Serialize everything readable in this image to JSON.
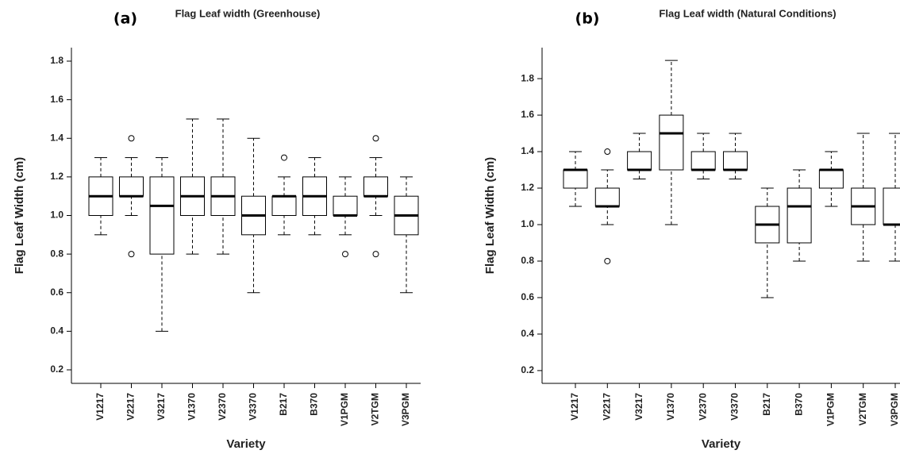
{
  "chart_data": [
    {
      "type": "box",
      "panel_label": "(a)",
      "title": "Flag Leaf width (Greenhouse)",
      "xlabel": "Variety",
      "ylabel": "Flag Leaf Width (cm)",
      "categories": [
        "V1217",
        "V2217",
        "V3217",
        "V1370",
        "V2370",
        "V3370",
        "B217",
        "B370",
        "V1PGM",
        "V2TGM",
        "V3PGM"
      ],
      "boxes": [
        {
          "whislo": 0.9,
          "q1": 1.0,
          "med": 1.1,
          "q3": 1.2,
          "whishi": 1.3,
          "fliers": []
        },
        {
          "whislo": 1.0,
          "q1": 1.1,
          "med": 1.1,
          "q3": 1.2,
          "whishi": 1.3,
          "fliers": [
            1.4,
            0.8
          ]
        },
        {
          "whislo": 0.4,
          "q1": 0.8,
          "med": 1.05,
          "q3": 1.2,
          "whishi": 1.3,
          "fliers": []
        },
        {
          "whislo": 0.8,
          "q1": 1.0,
          "med": 1.1,
          "q3": 1.2,
          "whishi": 1.5,
          "fliers": []
        },
        {
          "whislo": 0.8,
          "q1": 1.0,
          "med": 1.1,
          "q3": 1.2,
          "whishi": 1.5,
          "fliers": []
        },
        {
          "whislo": 0.6,
          "q1": 0.9,
          "med": 1.0,
          "q3": 1.1,
          "whishi": 1.4,
          "fliers": []
        },
        {
          "whislo": 0.9,
          "q1": 1.0,
          "med": 1.1,
          "q3": 1.1,
          "whishi": 1.2,
          "fliers": [
            1.3
          ]
        },
        {
          "whislo": 0.9,
          "q1": 1.0,
          "med": 1.1,
          "q3": 1.2,
          "whishi": 1.3,
          "fliers": []
        },
        {
          "whislo": 0.9,
          "q1": 1.0,
          "med": 1.0,
          "q3": 1.1,
          "whishi": 1.2,
          "fliers": [
            0.8
          ]
        },
        {
          "whislo": 1.0,
          "q1": 1.1,
          "med": 1.1,
          "q3": 1.2,
          "whishi": 1.3,
          "fliers": [
            1.4,
            0.8
          ]
        },
        {
          "whislo": 0.6,
          "q1": 0.9,
          "med": 1.0,
          "q3": 1.1,
          "whishi": 1.2,
          "fliers": []
        }
      ],
      "ylim": [
        0.13,
        1.87
      ],
      "yticks": [
        0.2,
        0.4,
        0.6,
        0.8,
        {
          "value": 1,
          "label": "1.0"
        },
        1.2,
        1.4,
        1.6,
        1.8
      ]
    },
    {
      "type": "box",
      "panel_label": "(b)",
      "title": "Flag Leaf width (Natural Conditions)",
      "xlabel": "Variety",
      "ylabel": "Flag Leaf Width (cm)",
      "categories": [
        "V1217",
        "V2217",
        "V3217",
        "V1370",
        "V2370",
        "V3370",
        "B217",
        "B370",
        "V1PGM",
        "V2TGM",
        "V3PGM"
      ],
      "boxes": [
        {
          "whislo": 1.1,
          "q1": 1.2,
          "med": 1.3,
          "q3": 1.3,
          "whishi": 1.4,
          "fliers": []
        },
        {
          "whislo": 1.0,
          "q1": 1.1,
          "med": 1.1,
          "q3": 1.2,
          "whishi": 1.3,
          "fliers": [
            1.4,
            0.8
          ]
        },
        {
          "whislo": 1.25,
          "q1": 1.3,
          "med": 1.3,
          "q3": 1.4,
          "whishi": 1.5,
          "fliers": []
        },
        {
          "whislo": 1.0,
          "q1": 1.3,
          "med": 1.5,
          "q3": 1.6,
          "whishi": 1.9,
          "fliers": []
        },
        {
          "whislo": 1.25,
          "q1": 1.3,
          "med": 1.3,
          "q3": 1.4,
          "whishi": 1.5,
          "fliers": []
        },
        {
          "whislo": 1.25,
          "q1": 1.3,
          "med": 1.3,
          "q3": 1.4,
          "whishi": 1.5,
          "fliers": []
        },
        {
          "whislo": 0.6,
          "q1": 0.9,
          "med": 1.0,
          "q3": 1.1,
          "whishi": 1.2,
          "fliers": []
        },
        {
          "whislo": 0.8,
          "q1": 0.9,
          "med": 1.1,
          "q3": 1.2,
          "whishi": 1.3,
          "fliers": []
        },
        {
          "whislo": 1.1,
          "q1": 1.2,
          "med": 1.3,
          "q3": 1.3,
          "whishi": 1.4,
          "fliers": []
        },
        {
          "whislo": 0.8,
          "q1": 1.0,
          "med": 1.1,
          "q3": 1.2,
          "whishi": 1.5,
          "fliers": []
        },
        {
          "whislo": 0.8,
          "q1": 1.0,
          "med": 1.0,
          "q3": 1.2,
          "whishi": 1.5,
          "fliers": []
        }
      ],
      "ylim": [
        0.13,
        1.97
      ],
      "yticks": [
        0.2,
        0.4,
        0.6,
        0.8,
        {
          "value": 1,
          "label": "1.0"
        },
        1.2,
        1.4,
        1.6,
        1.8
      ]
    }
  ]
}
